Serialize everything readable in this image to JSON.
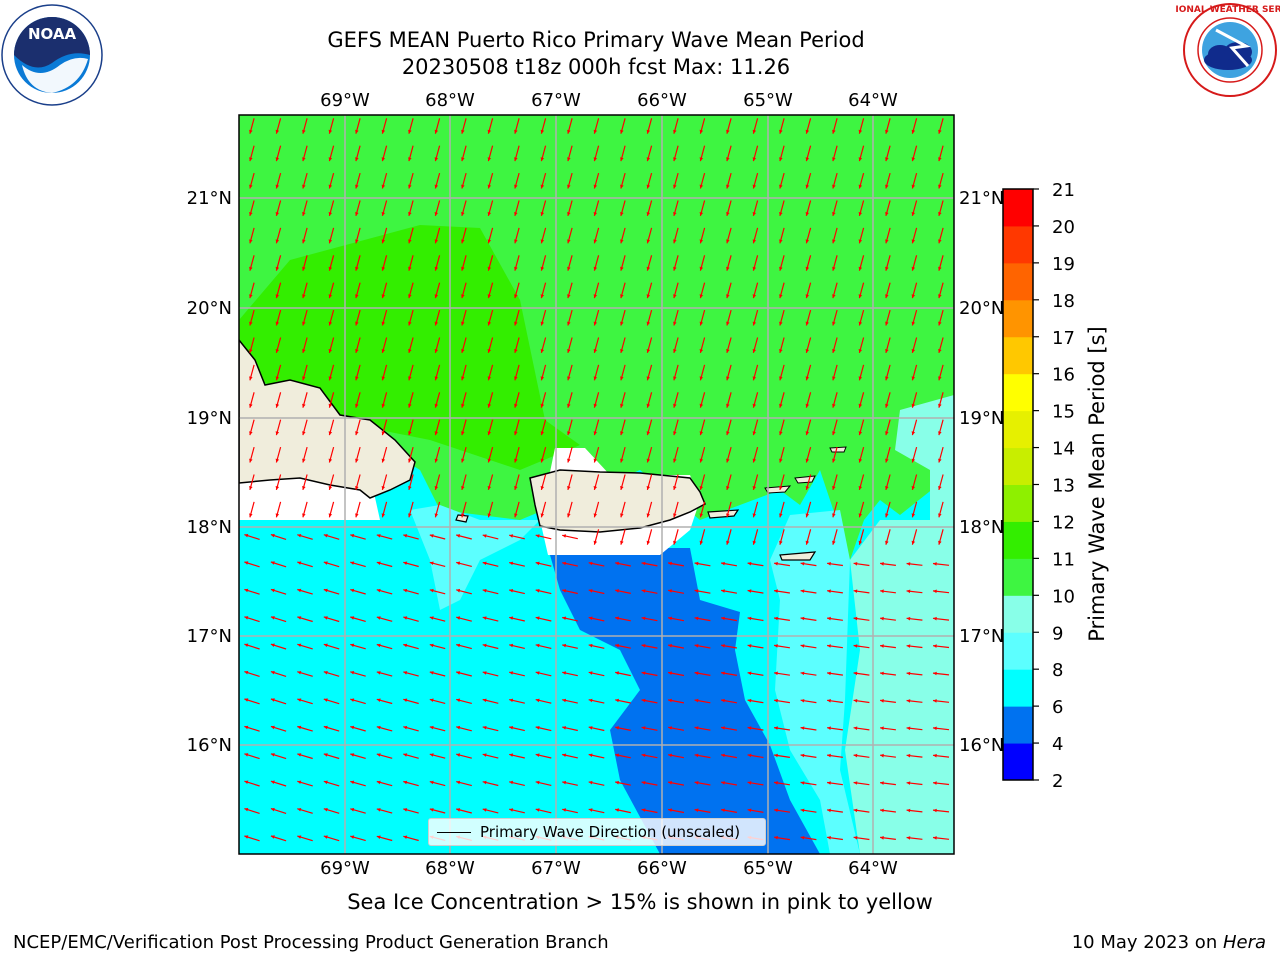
{
  "title": {
    "line1": "GEFS MEAN Puerto Rico Primary Wave Mean Period",
    "line2": "20230508 t18z 000h fcst   Max: 11.26"
  },
  "map": {
    "lon_labels_top": [
      "69°W",
      "68°W",
      "67°W",
      "66°W",
      "65°W",
      "64°W"
    ],
    "lon_labels_bottom": [
      "69°W",
      "68°W",
      "67°W",
      "66°W",
      "65°W",
      "64°W"
    ],
    "lat_labels_left": [
      "21°N",
      "20°N",
      "19°N",
      "18°N",
      "17°N",
      "16°N"
    ],
    "lat_labels_right": [
      "21°N",
      "20°N",
      "19°N",
      "18°N",
      "17°N",
      "16°N"
    ],
    "land_color": "#f0eddc",
    "arrow_color": "#ff0000"
  },
  "legend": {
    "label": "Primary Wave Direction (unscaled)"
  },
  "colorbar": {
    "label": "Primary Wave Mean Period [s]",
    "ticks": [
      "2",
      "4",
      "6",
      "8",
      "9",
      "10",
      "11",
      "12",
      "13",
      "14",
      "15",
      "16",
      "17",
      "18",
      "19",
      "20",
      "21"
    ],
    "colors": [
      "#0000ff",
      "#0072f0",
      "#00ffff",
      "#5cffff",
      "#88ffe8",
      "#3ef541",
      "#33ee00",
      "#8ef000",
      "#c8ee00",
      "#e6f000",
      "#ffff00",
      "#ffc800",
      "#ff9400",
      "#ff6400",
      "#ff3800",
      "#ff0000"
    ]
  },
  "caption": "Sea Ice Concentration > 15% is shown in pink to yellow",
  "footer": {
    "left": "NCEP/EMC/Verification Post Processing Product Generation Branch",
    "right_prefix": "10 May 2023 on ",
    "right_host": "Hera"
  },
  "logos": {
    "noaa": "NOAA",
    "nws": "NATIONAL WEATHER SERVICE"
  }
}
